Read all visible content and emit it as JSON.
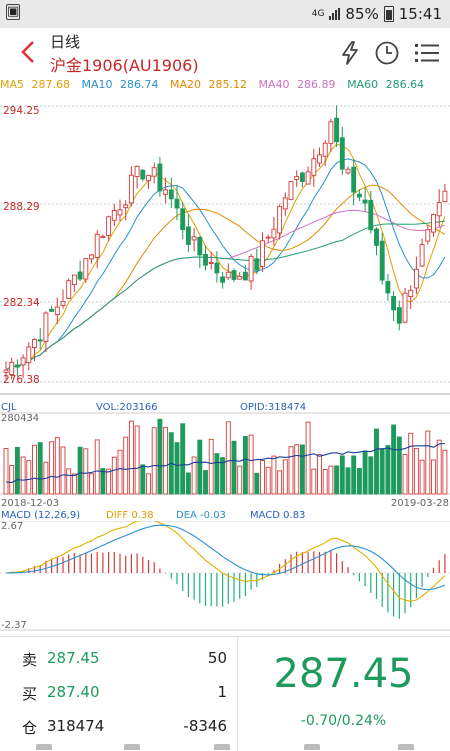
{
  "status": {
    "time": "15:41",
    "battery": "85%",
    "network": "4G",
    "notification_icon": "image-notification-icon"
  },
  "header": {
    "period": "日线",
    "symbol": "沪金1906(AU1906)",
    "icons": [
      "lightning-icon",
      "clock-icon",
      "menu-icon"
    ]
  },
  "ma": [
    {
      "label": "MA5",
      "value": "287.68",
      "color": "#e0a000"
    },
    {
      "label": "MA10",
      "value": "286.74",
      "color": "#2a90d0"
    },
    {
      "label": "MA20",
      "value": "285.12",
      "color": "#e08a00"
    },
    {
      "label": "MA40",
      "value": "286.89",
      "color": "#d070c0"
    },
    {
      "label": "MA60",
      "value": "286.64",
      "color": "#20a070"
    }
  ],
  "price_axis": {
    "max": "294.25",
    "mid": "288.29",
    "low": "282.34",
    "min": "276.38"
  },
  "volume": {
    "cjl_label": "CJL",
    "vol_label": "VOL:203166",
    "opid_label": "OPID:318474",
    "axis_max": "280434",
    "start_date": "2018-12-03",
    "end_date": "2019-03-28"
  },
  "macd": {
    "label": "MACD (12,26,9)",
    "diff": "DIFF 0.38",
    "dea": "DEA -0.03",
    "macd": "MACD 0.83",
    "axis_max": "2.67",
    "axis_min": "-2.37"
  },
  "quotes": {
    "sell": {
      "label": "卖",
      "price": "287.45",
      "qty": "50"
    },
    "buy": {
      "label": "买",
      "price": "287.40",
      "qty": "1"
    },
    "position": {
      "label": "仓",
      "value": "318474",
      "change": "-8346"
    },
    "last_price": "287.45",
    "change": "-0.70/0.24%"
  },
  "colors": {
    "up": "#d33b3b",
    "down": "#1e9a5d",
    "grid": "#bbb"
  }
}
